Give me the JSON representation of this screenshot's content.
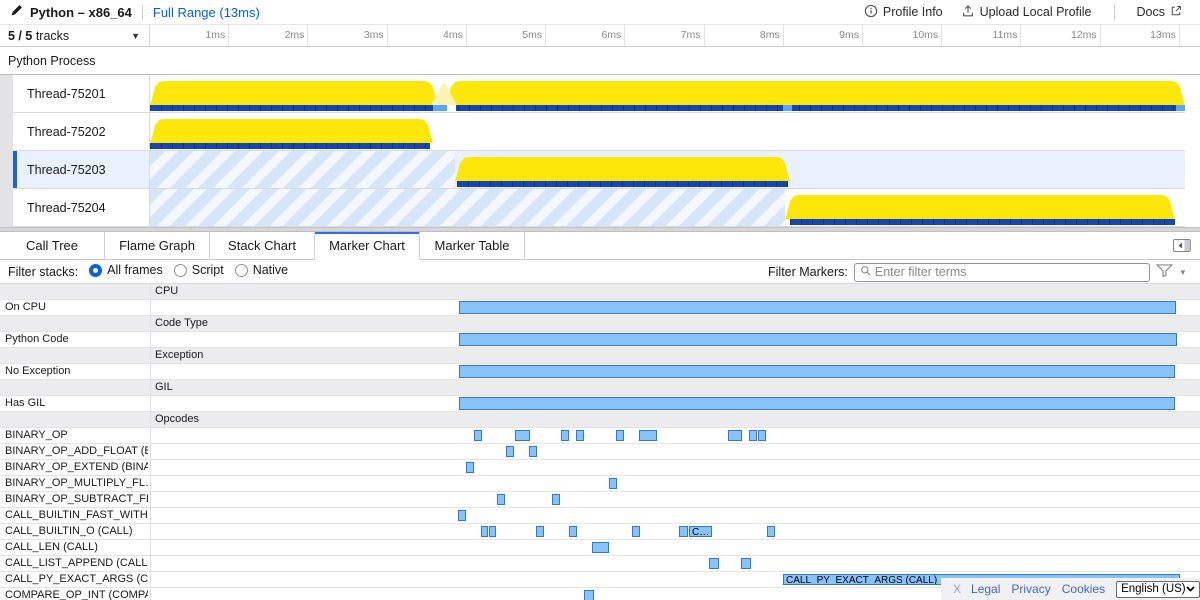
{
  "header": {
    "title": "Python – x86_64",
    "range_label": "Full Range (13ms)",
    "profile_info_label": "Profile Info",
    "upload_label": "Upload Local Profile",
    "docs_label": "Docs"
  },
  "timeline": {
    "tracks_count": "5 / 5",
    "tracks_word": "tracks",
    "ticks": [
      "1ms",
      "2ms",
      "3ms",
      "4ms",
      "5ms",
      "6ms",
      "7ms",
      "8ms",
      "9ms",
      "10ms",
      "11ms",
      "12ms",
      "13ms"
    ],
    "process_label": "Python Process",
    "threads": [
      {
        "name": "Thread-75201",
        "selected": false,
        "stripes": [],
        "humps": [
          [
            0,
            288
          ],
          [
            296,
            739
          ]
        ],
        "pale": [
          [
            281,
            26
          ]
        ],
        "strip": [
          [
            0,
            1035
          ]
        ],
        "strip_overlays": [
          [
            "light",
            283,
            14
          ],
          [
            "gap",
            297,
            9
          ],
          [
            "light",
            633,
            9
          ],
          [
            "light",
            1026,
            9
          ]
        ]
      },
      {
        "name": "Thread-75202",
        "selected": false,
        "stripes": [],
        "humps": [
          [
            0,
            283
          ]
        ],
        "pale": [],
        "strip": [
          [
            0,
            280
          ]
        ],
        "strip_overlays": []
      },
      {
        "name": "Thread-75203",
        "selected": true,
        "stripes": [
          [
            0,
            305
          ]
        ],
        "humps": [
          [
            305,
            335
          ]
        ],
        "pale": [],
        "strip": [
          [
            307,
            331
          ]
        ],
        "strip_overlays": []
      },
      {
        "name": "Thread-75204",
        "selected": false,
        "stripes": [
          [
            0,
            635
          ]
        ],
        "humps": [
          [
            635,
            390
          ]
        ],
        "pale": [],
        "strip": [
          [
            640,
            385
          ]
        ],
        "strip_overlays": []
      }
    ]
  },
  "panel": {
    "tabs": [
      "Call Tree",
      "Flame Graph",
      "Stack Chart",
      "Marker Chart",
      "Marker Table"
    ],
    "selected_index": 3,
    "filter_stacks_label": "Filter stacks:",
    "radios": [
      {
        "label": "All frames",
        "selected": true
      },
      {
        "label": "Script",
        "selected": false
      },
      {
        "label": "Native",
        "selected": false
      }
    ],
    "filter_markers_label": "Filter Markers:",
    "search_placeholder": "Enter filter terms"
  },
  "marker_chart": {
    "rows": [
      {
        "type": "header",
        "label": "CPU"
      },
      {
        "type": "item",
        "big": true,
        "label": "On CPU",
        "markers": [
          [
            459,
            1176
          ]
        ]
      },
      {
        "type": "header",
        "label": "Code Type"
      },
      {
        "type": "item",
        "big": true,
        "label": "Python Code",
        "markers": [
          [
            459,
            1177
          ]
        ]
      },
      {
        "type": "header",
        "label": "Exception"
      },
      {
        "type": "item",
        "big": true,
        "label": "No Exception",
        "markers": [
          [
            459,
            1175
          ]
        ]
      },
      {
        "type": "header",
        "label": "GIL"
      },
      {
        "type": "item",
        "big": true,
        "label": "Has GIL",
        "markers": [
          [
            459,
            1175
          ]
        ]
      },
      {
        "type": "header",
        "label": "Opcodes"
      },
      {
        "type": "item",
        "label": "BINARY_OP",
        "markers": [
          [
            474,
            482
          ],
          [
            515,
            530
          ],
          [
            561,
            569
          ],
          [
            576,
            584
          ],
          [
            616,
            624
          ],
          [
            639,
            657
          ],
          [
            728,
            742
          ],
          [
            749,
            757
          ],
          [
            758,
            766
          ]
        ]
      },
      {
        "type": "item",
        "label": "BINARY_OP_ADD_FLOAT (B…",
        "markers": [
          [
            506,
            514
          ],
          [
            529,
            537
          ]
        ]
      },
      {
        "type": "item",
        "label": "BINARY_OP_EXTEND (BINA…",
        "markers": [
          [
            466,
            474
          ]
        ]
      },
      {
        "type": "item",
        "label": "BINARY_OP_MULTIPLY_FL…",
        "markers": [
          [
            609,
            617
          ]
        ]
      },
      {
        "type": "item",
        "label": "BINARY_OP_SUBTRACT_FL…",
        "markers": [
          [
            497,
            505
          ],
          [
            552,
            560
          ]
        ]
      },
      {
        "type": "item",
        "label": "CALL_BUILTIN_FAST_WITH…",
        "markers": [
          [
            458,
            466
          ]
        ]
      },
      {
        "type": "item",
        "label": "CALL_BUILTIN_O (CALL)",
        "markers": [
          [
            481,
            488
          ],
          [
            489,
            496
          ],
          [
            536,
            544
          ],
          [
            569,
            577
          ],
          [
            632,
            640
          ],
          [
            679,
            688
          ],
          [
            689,
            712,
            "C…"
          ],
          [
            767,
            775
          ]
        ]
      },
      {
        "type": "item",
        "label": "CALL_LEN (CALL)",
        "markers": [
          [
            592,
            609
          ]
        ]
      },
      {
        "type": "item",
        "label": "CALL_LIST_APPEND (CALL)",
        "markers": [
          [
            709,
            719
          ],
          [
            741,
            751
          ]
        ]
      },
      {
        "type": "item",
        "label": "CALL_PY_EXACT_ARGS (C…",
        "markers": [
          [
            783,
            1180,
            "CALL_PY_EXACT_ARGS (CALL)"
          ]
        ]
      },
      {
        "type": "item",
        "label": "COMPARE_OP_INT (COMPA…",
        "markers": [
          [
            584,
            594
          ]
        ]
      }
    ]
  },
  "footer": {
    "links": [
      "X",
      "Legal",
      "Privacy",
      "Cookies"
    ],
    "language": "English (US)"
  },
  "colors": {
    "link_blue": "#0060df",
    "tab_accent": "#2c6fe8",
    "marker_fill": "#8ac3f9",
    "marker_border": "#2d7ad2",
    "activity_yellow": "#fde70b",
    "activity_pale": "#fbf2b0",
    "gil_strip_blue": "#1646b2",
    "gil_strip_light": "#55a7f7",
    "selected_row_bg": "#e9f2fc",
    "selection_border": "#2163cc",
    "category_row_bg": "#ececef"
  }
}
